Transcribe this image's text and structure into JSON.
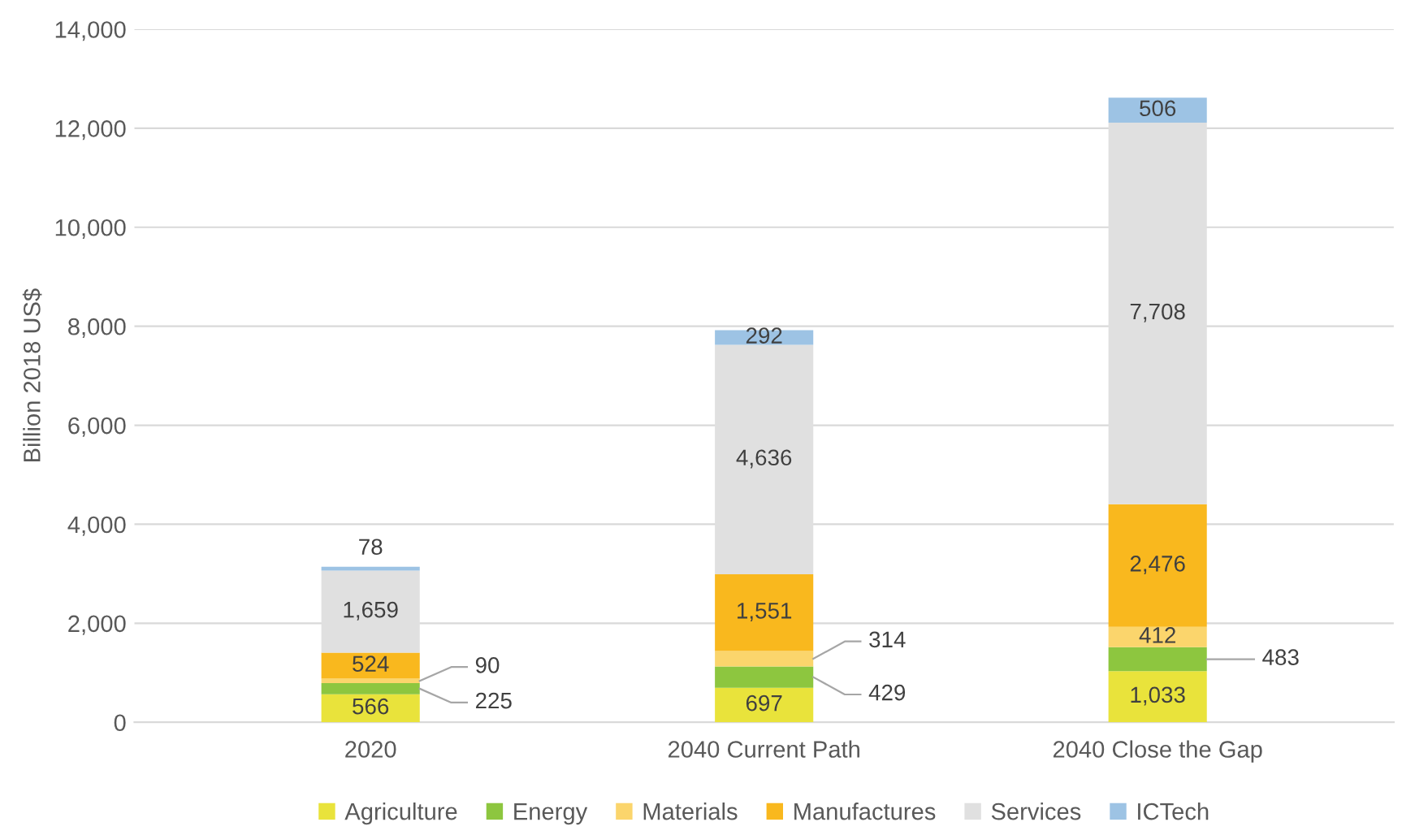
{
  "chart_data": {
    "type": "bar",
    "stacked": true,
    "ylabel": "Billion 2018 US$",
    "categories": [
      "2020",
      "2040 Current Path",
      "2040 Close the Gap"
    ],
    "series": [
      {
        "name": "Agriculture",
        "color": "#e9e33b",
        "values": [
          566,
          697,
          1033
        ],
        "value_labels": [
          "566",
          "697",
          "1,033"
        ]
      },
      {
        "name": "Energy",
        "color": "#8dc63f",
        "values": [
          225,
          429,
          483
        ],
        "value_labels": [
          "225",
          "429",
          "483"
        ]
      },
      {
        "name": "Materials",
        "color": "#fbd56c",
        "values": [
          90,
          314,
          412
        ],
        "value_labels": [
          "90",
          "314",
          "412"
        ]
      },
      {
        "name": "Manufactures",
        "color": "#f9b81e",
        "values": [
          524,
          1551,
          2476
        ],
        "value_labels": [
          "524",
          "1,551",
          "2,476"
        ]
      },
      {
        "name": "Services",
        "color": "#e0e0e0",
        "values": [
          1659,
          4636,
          7708
        ],
        "value_labels": [
          "1,659",
          "4,636",
          "7,708"
        ]
      },
      {
        "name": "ICTech",
        "color": "#9dc3e4",
        "values": [
          78,
          292,
          506
        ],
        "value_labels": [
          "78",
          "292",
          "506"
        ]
      }
    ],
    "ylim": [
      0,
      14000
    ],
    "yticks": [
      0,
      {
        "value": 2000,
        "label": "2,000"
      },
      {
        "value": 4000,
        "label": "4,000"
      },
      {
        "value": 6000,
        "label": "6,000"
      },
      {
        "value": 8000,
        "label": "8,000"
      },
      {
        "value": 10000,
        "label": "10,000"
      },
      {
        "value": 12000,
        "label": "12,000"
      },
      {
        "value": 14000,
        "label": "14,000"
      }
    ],
    "grid": "y",
    "legend": "bottom"
  }
}
